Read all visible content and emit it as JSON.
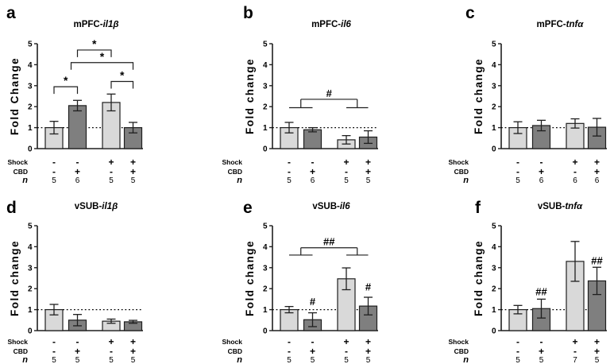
{
  "colors": {
    "bar_light": "#d9d9d9",
    "bar_dark": "#7f7f7f",
    "outline": "#1f1f1f",
    "axis": "#1f1f1f",
    "text": "#000000",
    "reference_line": "#000000"
  },
  "row_labels": {
    "shock": "Shock",
    "cbd": "CBD",
    "n": "n"
  },
  "chart_data": [
    {
      "panel_letter": "a",
      "type": "bar",
      "title_prefix": "mPFC-",
      "title_gene": "il1β",
      "ylabel": "Fold Change",
      "ylim": [
        0,
        5
      ],
      "yticks": [
        0,
        1,
        2,
        3,
        4,
        5
      ],
      "reference_line": 1,
      "shock": [
        "-",
        "-",
        "+",
        "+"
      ],
      "cbd": [
        "-",
        "+",
        "-",
        "+"
      ],
      "n": [
        "5",
        "6",
        "5",
        "5"
      ],
      "values": [
        1.0,
        2.05,
        2.2,
        1.0
      ],
      "errors": [
        0.3,
        0.25,
        0.4,
        0.25
      ],
      "bar_fill": [
        "light",
        "dark",
        "light",
        "dark"
      ],
      "sig_brackets": [
        {
          "from": 0,
          "to": 1,
          "y": 2.95,
          "label": "*"
        },
        {
          "from": 1,
          "to": 2,
          "y": 4.7,
          "label": "*"
        },
        {
          "from": 1,
          "to": 3,
          "y": 4.1,
          "label": "*",
          "x1_nudge": -8
        },
        {
          "from": 2,
          "to": 3,
          "y": 3.2,
          "label": "*"
        }
      ],
      "group_bracket": null,
      "sig_marks": []
    },
    {
      "panel_letter": "b",
      "type": "bar",
      "title_prefix": "mPFC-",
      "title_gene": "il6",
      "ylabel": "Fold change",
      "ylim": [
        0,
        5
      ],
      "yticks": [
        0,
        1,
        2,
        3,
        4,
        5
      ],
      "reference_line": 1,
      "shock": [
        "-",
        "-",
        "+",
        "+"
      ],
      "cbd": [
        "-",
        "+",
        "-",
        "+"
      ],
      "n": [
        "5",
        "6",
        "5",
        "5"
      ],
      "values": [
        1.0,
        0.9,
        0.42,
        0.55
      ],
      "errors": [
        0.25,
        0.1,
        0.2,
        0.3
      ],
      "bar_fill": [
        "light",
        "dark",
        "light",
        "dark"
      ],
      "sig_brackets": [],
      "group_bracket": {
        "label": "#",
        "y_main": 2.35,
        "y_wing": 1.95,
        "pairs": [
          [
            0,
            1
          ],
          [
            2,
            3
          ]
        ]
      },
      "sig_marks": []
    },
    {
      "panel_letter": "c",
      "type": "bar",
      "title_prefix": "mPFC-",
      "title_gene": "tnfα",
      "ylabel": "Fold change",
      "ylim": [
        0,
        5
      ],
      "yticks": [
        0,
        1,
        2,
        3,
        4,
        5
      ],
      "reference_line": 1,
      "shock": [
        "-",
        "-",
        "+",
        "+"
      ],
      "cbd": [
        "-",
        "+",
        "-",
        "+"
      ],
      "n": [
        "5",
        "6",
        "6",
        "6"
      ],
      "values": [
        1.0,
        1.1,
        1.2,
        1.02
      ],
      "errors": [
        0.28,
        0.25,
        0.22,
        0.42
      ],
      "bar_fill": [
        "light",
        "dark",
        "light",
        "dark"
      ],
      "sig_brackets": [],
      "group_bracket": null,
      "sig_marks": []
    },
    {
      "panel_letter": "d",
      "type": "bar",
      "title_prefix": "vSUB-",
      "title_gene": "il1β",
      "ylabel": "Fold change",
      "ylim": [
        0,
        5
      ],
      "yticks": [
        0,
        1,
        2,
        3,
        4,
        5
      ],
      "reference_line": 1,
      "shock": [
        "-",
        "-",
        "+",
        "+"
      ],
      "cbd": [
        "-",
        "+",
        "-",
        "+"
      ],
      "n": [
        "5",
        "5",
        "5",
        "5"
      ],
      "values": [
        1.0,
        0.5,
        0.45,
        0.42
      ],
      "errors": [
        0.25,
        0.27,
        0.1,
        0.07
      ],
      "bar_fill": [
        "light",
        "dark",
        "light",
        "dark"
      ],
      "sig_brackets": [],
      "group_bracket": null,
      "sig_marks": []
    },
    {
      "panel_letter": "e",
      "type": "bar",
      "title_prefix": "vSUB-",
      "title_gene": "il6",
      "ylabel": "Fold change",
      "ylim": [
        0,
        5
      ],
      "yticks": [
        0,
        1,
        2,
        3,
        4,
        5
      ],
      "reference_line": 1,
      "shock": [
        "-",
        "-",
        "+",
        "+"
      ],
      "cbd": [
        "-",
        "+",
        "-",
        "+"
      ],
      "n": [
        "5",
        "5",
        "5",
        "5"
      ],
      "values": [
        1.0,
        0.52,
        2.47,
        1.17
      ],
      "errors": [
        0.15,
        0.33,
        0.52,
        0.42
      ],
      "bar_fill": [
        "light",
        "dark",
        "light",
        "dark"
      ],
      "sig_brackets": [],
      "group_bracket": {
        "label": "##",
        "y_main": 3.95,
        "y_wing": 3.6,
        "pairs": [
          [
            0,
            1
          ],
          [
            2,
            3
          ]
        ]
      },
      "sig_marks": [
        {
          "bar": 1,
          "label": "#",
          "y": 1.22
        },
        {
          "bar": 3,
          "label": "#",
          "y": 1.92
        }
      ]
    },
    {
      "panel_letter": "f",
      "type": "bar",
      "title_prefix": "vSUB-",
      "title_gene": "tnfα",
      "ylabel": "Fold change",
      "ylim": [
        0,
        5
      ],
      "yticks": [
        0,
        1,
        2,
        3,
        4,
        5
      ],
      "reference_line": 1,
      "shock": [
        "-",
        "-",
        "+",
        "+"
      ],
      "cbd": [
        "-",
        "+",
        "-",
        "+"
      ],
      "n": [
        "5",
        "5",
        "7",
        "5"
      ],
      "values": [
        1.0,
        1.05,
        3.3,
        2.37
      ],
      "errors": [
        0.2,
        0.45,
        0.95,
        0.65
      ],
      "bar_fill": [
        "light",
        "dark",
        "light",
        "dark"
      ],
      "sig_brackets": [],
      "group_bracket": null,
      "sig_marks": [
        {
          "bar": 1,
          "label": "##",
          "y": 1.68
        },
        {
          "bar": 3,
          "label": "##",
          "y": 3.17
        }
      ]
    }
  ]
}
